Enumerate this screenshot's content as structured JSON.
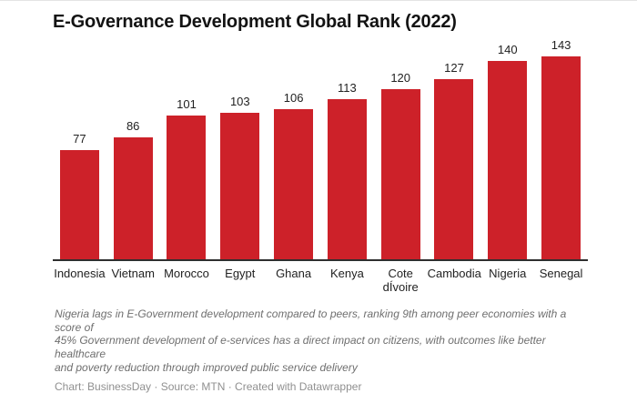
{
  "chart": {
    "title": "E-Governance Development Global Rank (2022)",
    "notes": "Nigeria lags in E-Government development compared to peers, ranking 9th among peer economies with a score of\n45% Government development of e-services has a direct impact on citizens, with outcomes like better healthcare\nand poverty reduction through improved public service delivery",
    "byline": "Chart: BusinessDay · Source: MTN · Created with Datawrapper"
  },
  "chart_data": {
    "type": "bar",
    "title": "E-Governance Development Global Rank (2022)",
    "categories": [
      "Indonesia",
      "Vietnam",
      "Morocco",
      "Egypt",
      "Ghana",
      "Kenya",
      "Cote dÍvoire",
      "Cambodia",
      "Nigeria",
      "Senegal"
    ],
    "values": [
      77,
      86,
      101,
      103,
      106,
      113,
      120,
      127,
      140,
      143
    ],
    "xlabel": "",
    "ylabel": "",
    "ylim": [
      0,
      143
    ],
    "bar_color": "#cd2129",
    "axis_color": "#2f2f2f",
    "value_labels_shown": true,
    "grid": false,
    "legend": false,
    "notes": "Nigeria lags in E-Government development compared to peers, ranking 9th among peer economies with a score of 45% Government development of e-services has a direct impact on citizens, with outcomes like better healthcare and poverty reduction through improved public service delivery",
    "source_line": "Chart: BusinessDay · Source: MTN · Created with Datawrapper"
  }
}
